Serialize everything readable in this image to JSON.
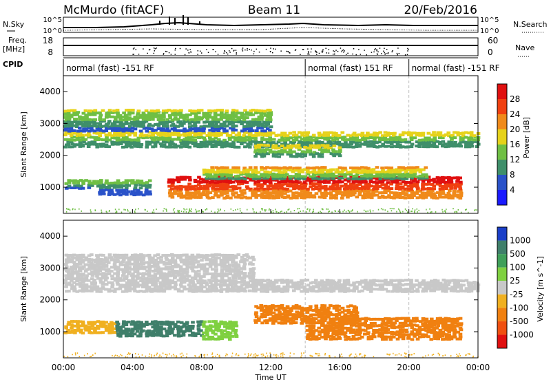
{
  "header": {
    "station": "McMurdo (fitACF)",
    "beam": "Beam 11",
    "date": "20/Feb/2016"
  },
  "summary_panels": {
    "nsky_label": "N.Sky",
    "nsearch_label": "N.Search",
    "noise_ticks_left": [
      "10^5",
      "10^0"
    ],
    "noise_ticks_right": [
      "10^5",
      "10^0"
    ],
    "freq_label_1": "Freq.",
    "freq_label_2": "[MHz]",
    "freq_ticks": [
      "18",
      "8"
    ],
    "nave_label": "Nave",
    "nave_ticks": [
      "60",
      "0"
    ],
    "cpid_label": "CPID",
    "cpid_segments": [
      {
        "label": "normal (fast) -151 RF",
        "start_hour": 0,
        "end_hour": 14
      },
      {
        "label": "normal (fast) 151 RF",
        "start_hour": 14,
        "end_hour": 20
      },
      {
        "label": "normal (fast) -151 RF",
        "start_hour": 20,
        "end_hour": 24
      }
    ]
  },
  "chart_data": [
    {
      "type": "heatmap",
      "name": "power",
      "ylabel": "Slant Range [km]",
      "xlabel": "",
      "y_ticks": [
        "1000",
        "2000",
        "3000",
        "4000"
      ],
      "ylim": [
        180,
        4500
      ],
      "xlim": [
        0,
        24
      ],
      "colorbar_label": "Power [dB]",
      "colorbar_ticks": [
        "4",
        "8",
        "12",
        "16",
        "20",
        "24",
        "28"
      ],
      "colorbar_colors": [
        "#1a1aff",
        "#2a52c9",
        "#3f8f6a",
        "#6fbf44",
        "#e6d21a",
        "#f08a1a",
        "#f04010",
        "#e01010"
      ],
      "bands": [
        {
          "range_km": [
            1000,
            1300
          ],
          "hours": [
            0,
            2
          ],
          "level": 10
        },
        {
          "range_km": [
            800,
            1300
          ],
          "hours": [
            2,
            5
          ],
          "level": 8
        },
        {
          "range_km": [
            700,
            1400
          ],
          "hours": [
            6,
            23
          ],
          "level": 24
        },
        {
          "range_km": [
            1300,
            1700
          ],
          "hours": [
            8,
            21
          ],
          "level": 14
        },
        {
          "range_km": [
            2300,
            2800
          ],
          "hours": [
            0,
            24
          ],
          "level": 12
        },
        {
          "range_km": [
            2800,
            3500
          ],
          "hours": [
            0,
            12
          ],
          "level": 10
        },
        {
          "range_km": [
            2000,
            2400
          ],
          "hours": [
            11,
            16
          ],
          "level": 12
        }
      ]
    },
    {
      "type": "heatmap",
      "name": "velocity",
      "ylabel": "Slant Range [km]",
      "xlabel": "Time UT",
      "y_ticks": [
        "1000",
        "2000",
        "3000",
        "4000"
      ],
      "x_ticks": [
        "00:00",
        "04:00",
        "08:00",
        "12:00",
        "16:00",
        "20:00",
        "00:00"
      ],
      "ylim": [
        180,
        4500
      ],
      "xlim": [
        0,
        24
      ],
      "colorbar_label": "Velocity [m s^-1]",
      "colorbar_ticks": [
        "1000",
        "500",
        "100",
        "25",
        "-25",
        "-100",
        "-500",
        "-1000"
      ],
      "colorbar_colors": [
        "#1a3fc8",
        "#3f7f6a",
        "#3f9f5a",
        "#7fd040",
        "#c8c8c8",
        "#f0b020",
        "#f08010",
        "#f05010",
        "#e01010"
      ],
      "bands": [
        {
          "range_km": [
            1000,
            1400
          ],
          "hours": [
            0,
            3
          ],
          "velocity": -100
        },
        {
          "range_km": [
            900,
            1400
          ],
          "hours": [
            3,
            8
          ],
          "velocity": 500
        },
        {
          "range_km": [
            800,
            1400
          ],
          "hours": [
            8,
            10
          ],
          "velocity": 100
        },
        {
          "range_km": [
            800,
            1500
          ],
          "hours": [
            14,
            23
          ],
          "velocity": -500
        },
        {
          "range_km": [
            2300,
            2700
          ],
          "hours": [
            0,
            24
          ],
          "velocity": 0
        },
        {
          "range_km": [
            2700,
            3500
          ],
          "hours": [
            0,
            11
          ],
          "velocity": 0
        },
        {
          "range_km": [
            1300,
            1900
          ],
          "hours": [
            11,
            17
          ],
          "velocity": -500
        }
      ]
    }
  ]
}
